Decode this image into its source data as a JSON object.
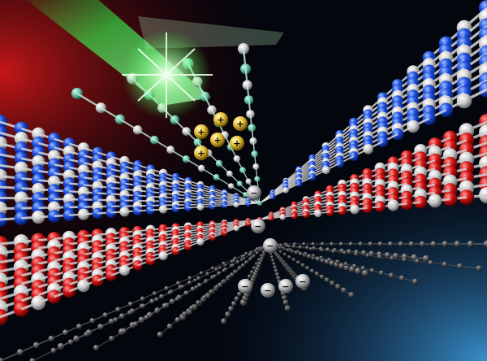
{
  "scene": {
    "background_colors": {
      "deep": "#03060d",
      "left_red": "#c41414",
      "laser_green": "#27ff45",
      "glow_blue": "#2a7cc4"
    },
    "layers": [
      {
        "name": "top-layer",
        "atom_colors": [
          "#1e4fe0",
          "#e6e6e6"
        ]
      },
      {
        "name": "middle-layer",
        "atom_colors": [
          "#d81515",
          "#e6e6e6"
        ]
      },
      {
        "name": "bottom-layer",
        "atom_colors": [
          "#5a5a5a"
        ]
      }
    ],
    "holes": {
      "symbol": "+",
      "count": 6,
      "color": "#f2d44a"
    },
    "electrons": {
      "symbol": "−",
      "count": 7,
      "color": "#111111"
    }
  }
}
